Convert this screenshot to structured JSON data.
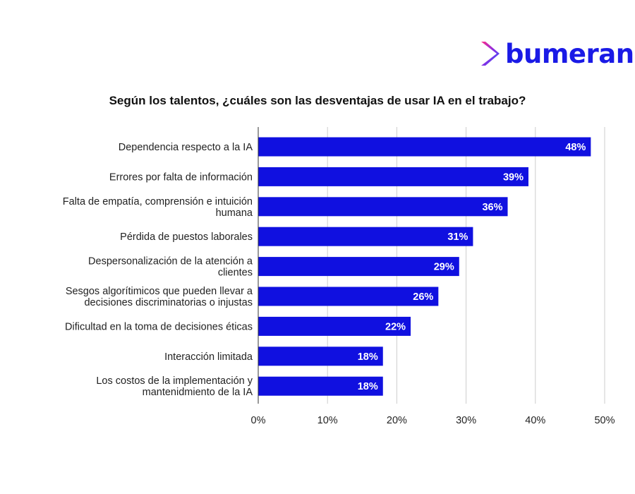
{
  "brand": {
    "name": "bumeran",
    "color": "#1a1ae6",
    "icon": "bumeran-chevron-logo-icon",
    "icon_colors": [
      "#ff2d8a",
      "#8a2be2",
      "#2a5bff"
    ]
  },
  "chart_data": {
    "type": "bar",
    "orientation": "horizontal",
    "title": "Según los talentos, ¿cuáles son las desventajas de usar IA en el trabajo?",
    "xlabel": "",
    "ylabel": "",
    "categories": [
      [
        "Dependencia respecto a la IA"
      ],
      [
        "Errores por falta de información"
      ],
      [
        "Falta de empatía, comprensión e intuición",
        "humana"
      ],
      [
        "Pérdida de puestos laborales"
      ],
      [
        "Despersonalización de la atención a",
        "clientes"
      ],
      [
        "Sesgos algorítimicos que pueden llevar a",
        "decisiones discriminatorias o injustas"
      ],
      [
        "Dificultad en la toma de decisiones éticas"
      ],
      [
        "Interacción limitada"
      ],
      [
        "Los costos de la implementación y",
        "mantenidmiento de la IA"
      ]
    ],
    "values": [
      48,
      39,
      36,
      31,
      29,
      26,
      22,
      18,
      18
    ],
    "data_labels": [
      "48%",
      "39%",
      "36%",
      "31%",
      "29%",
      "26%",
      "22%",
      "18%",
      "18%"
    ],
    "xlim": [
      0,
      50
    ],
    "ticks": [
      0,
      10,
      20,
      30,
      40,
      50
    ],
    "tick_labels": [
      "0%",
      "10%",
      "20%",
      "30%",
      "40%",
      "50%"
    ],
    "grid": true,
    "bar_color": "#1010e0"
  }
}
